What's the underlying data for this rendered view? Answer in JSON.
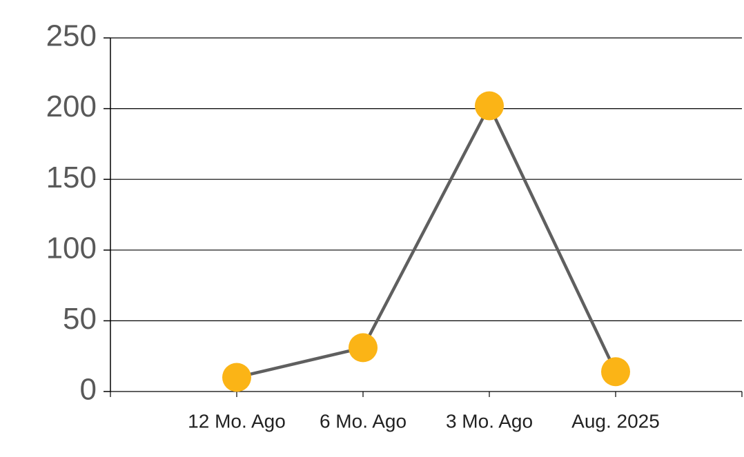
{
  "chart_data": {
    "type": "line",
    "categories": [
      "12 Mo. Ago",
      "6 Mo. Ago",
      "3 Mo. Ago",
      "Aug. 2025"
    ],
    "series": [
      {
        "values": [
          10,
          31,
          202,
          14
        ],
        "color": "#5f5f5f",
        "marker_color": "#fbb416"
      }
    ],
    "ylim": [
      0,
      250
    ],
    "yticks": [
      0,
      50,
      100,
      150,
      200,
      250
    ],
    "grid": true
  }
}
